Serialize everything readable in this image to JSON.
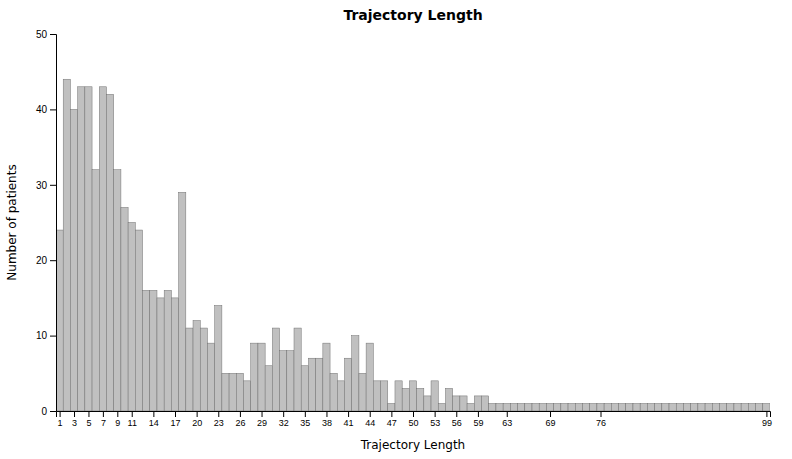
{
  "chart_data": {
    "type": "bar",
    "title": "Trajectory Length",
    "xlabel": "Trajectory Length",
    "ylabel": "Number of patients",
    "x": [
      1,
      2,
      3,
      4,
      5,
      6,
      7,
      8,
      9,
      10,
      11,
      12,
      13,
      14,
      15,
      16,
      17,
      18,
      19,
      20,
      21,
      22,
      23,
      24,
      25,
      26,
      27,
      28,
      29,
      30,
      31,
      32,
      33,
      34,
      35,
      36,
      37,
      38,
      39,
      40,
      41,
      42,
      43,
      44,
      45,
      46,
      47,
      48,
      49,
      50,
      51,
      52,
      53,
      54,
      55,
      56,
      57,
      58,
      59,
      60,
      61,
      62,
      63,
      64,
      65,
      66,
      67,
      68,
      69,
      70,
      71,
      72,
      73,
      74,
      75,
      76,
      77,
      78,
      79,
      80,
      81,
      82,
      83,
      84,
      85,
      86,
      87,
      88,
      89,
      90,
      91,
      92,
      93,
      94,
      95,
      96,
      97,
      98,
      99
    ],
    "values": [
      24,
      44,
      40,
      43,
      43,
      32,
      43,
      42,
      32,
      27,
      25,
      24,
      16,
      16,
      15,
      16,
      15,
      29,
      11,
      12,
      11,
      9,
      14,
      5,
      5,
      5,
      4,
      9,
      9,
      6,
      11,
      8,
      8,
      11,
      6,
      7,
      7,
      9,
      5,
      4,
      7,
      10,
      5,
      9,
      4,
      4,
      1,
      4,
      3,
      4,
      3,
      2,
      4,
      1,
      3,
      2,
      2,
      1,
      2,
      2,
      1,
      1,
      1,
      1,
      1,
      1,
      1,
      1,
      1,
      1,
      1,
      1,
      1,
      1,
      1,
      1,
      1,
      1,
      1,
      1,
      1,
      1,
      1,
      1,
      1,
      1,
      1,
      1,
      1,
      1,
      1,
      1,
      1,
      1,
      1,
      1,
      1,
      1,
      1
    ],
    "color": "#c0c0c0",
    "xlim": [
      0.5,
      99.5
    ],
    "xticks": [
      1,
      3,
      5,
      7,
      9,
      11,
      14,
      17,
      20,
      23,
      26,
      29,
      32,
      35,
      38,
      41,
      44,
      47,
      50,
      53,
      56,
      59,
      63,
      69,
      76,
      99
    ],
    "ylim": [
      0,
      50
    ],
    "yticks": [
      0,
      10,
      20,
      30,
      40,
      50
    ]
  }
}
